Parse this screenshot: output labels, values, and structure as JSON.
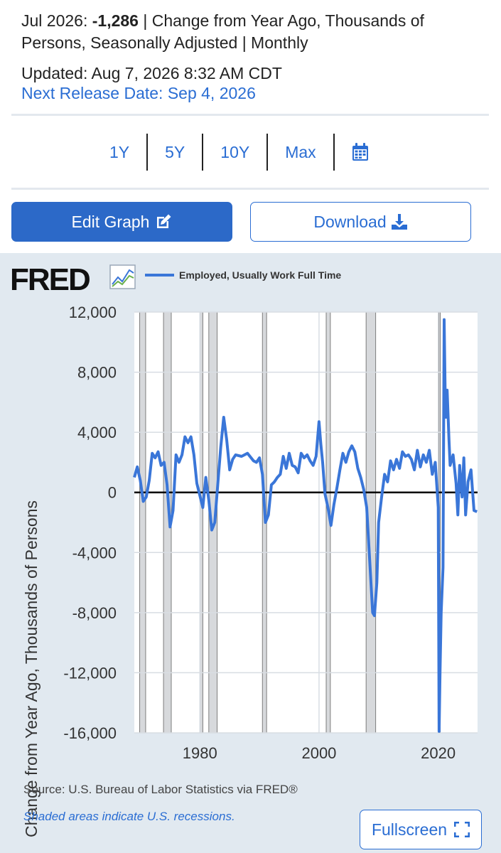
{
  "header": {
    "date": "Jul 2026:",
    "value": "-1,286",
    "units": "| Change from Year Ago, Thousands of Persons, Seasonally Adjusted | Monthly",
    "updated": "Updated: Aug 7, 2026 8:32 AM CDT",
    "next_release": "Next Release Date: Sep 4, 2026"
  },
  "range_buttons": [
    "1Y",
    "5Y",
    "10Y",
    "Max"
  ],
  "actions": {
    "edit": "Edit Graph",
    "download": "Download",
    "fullscreen": "Fullscreen"
  },
  "footer": {
    "source": "Source: U.S. Bureau of Labor Statistics via FRED®",
    "recession_note": "Shaded areas indicate U.S. recessions."
  },
  "brand": {
    "logo": "FRED",
    "accent": "#2a6dd3",
    "button_fill": "#2c69c8",
    "line_color": "#3a76d8"
  },
  "chart_data": {
    "type": "line",
    "title": "",
    "ylabel": "Change from Year Ago, Thousands of Persons",
    "xlabel": "",
    "legend": "Employed, Usually Work Full Time",
    "ylim": [
      -16000,
      12000
    ],
    "xlim": [
      1969,
      2026.6
    ],
    "yticks": [
      {
        "value": 12000,
        "label": "12,000"
      },
      {
        "value": 8000,
        "label": "8,000"
      },
      {
        "value": 4000,
        "label": "4,000"
      },
      {
        "value": 0,
        "label": "0"
      },
      {
        "value": -4000,
        "label": "-4,000"
      },
      {
        "value": -8000,
        "label": "-8,000"
      },
      {
        "value": -12000,
        "label": "-12,000"
      },
      {
        "value": -16000,
        "label": "-16,000"
      }
    ],
    "xticks": [
      {
        "value": 1980,
        "label": "1980"
      },
      {
        "value": 2000,
        "label": "2000"
      },
      {
        "value": 2020,
        "label": "2020"
      }
    ],
    "recessions": [
      [
        1969.9,
        1970.9
      ],
      [
        1973.9,
        1975.2
      ],
      [
        1980.0,
        1980.5
      ],
      [
        1981.5,
        1982.9
      ],
      [
        1990.5,
        1991.2
      ],
      [
        2001.2,
        2001.9
      ],
      [
        2007.9,
        2009.5
      ],
      [
        2020.1,
        2020.3
      ]
    ],
    "series": [
      {
        "name": "Employed, Usually Work Full Time",
        "x": [
          1969.0,
          1969.5,
          1970.0,
          1970.5,
          1971.0,
          1971.5,
          1972.0,
          1972.5,
          1973.0,
          1973.5,
          1974.0,
          1974.5,
          1975.0,
          1975.5,
          1976.0,
          1976.5,
          1977.0,
          1977.5,
          1978.0,
          1978.5,
          1979.0,
          1979.5,
          1980.0,
          1980.5,
          1981.0,
          1981.5,
          1982.0,
          1982.5,
          1983.0,
          1983.5,
          1984.0,
          1984.5,
          1985.0,
          1985.5,
          1986.0,
          1987.0,
          1988.0,
          1989.0,
          1989.5,
          1990.0,
          1990.5,
          1991.0,
          1991.5,
          1992.0,
          1992.5,
          1993.0,
          1993.5,
          1994.0,
          1994.5,
          1995.0,
          1995.5,
          1996.0,
          1996.5,
          1997.0,
          1997.5,
          1998.0,
          1998.5,
          1999.0,
          1999.5,
          2000.0,
          2000.3,
          2000.6,
          2001.0,
          2001.5,
          2002.0,
          2002.5,
          2003.0,
          2003.5,
          2004.0,
          2004.5,
          2005.0,
          2005.5,
          2006.0,
          2006.5,
          2007.0,
          2007.5,
          2008.0,
          2008.5,
          2009.0,
          2009.3,
          2009.7,
          2010.0,
          2010.5,
          2011.0,
          2011.5,
          2012.0,
          2012.5,
          2013.0,
          2013.5,
          2014.0,
          2014.5,
          2015.0,
          2015.5,
          2016.0,
          2016.5,
          2017.0,
          2017.5,
          2018.0,
          2018.5,
          2019.0,
          2019.5,
          2020.0,
          2020.15,
          2020.3,
          2020.5,
          2020.8,
          2021.0,
          2021.15,
          2021.3,
          2021.5,
          2021.8,
          2022.0,
          2022.5,
          2023.0,
          2023.3,
          2023.6,
          2024.0,
          2024.3,
          2024.6,
          2025.0,
          2025.5,
          2026.0,
          2026.5
        ],
        "values": [
          1000,
          1700,
          800,
          -600,
          -300,
          800,
          2600,
          2300,
          2700,
          1800,
          2000,
          500,
          -2300,
          -1200,
          2500,
          2000,
          2500,
          3700,
          3300,
          3700,
          2500,
          600,
          -200,
          -1000,
          1000,
          -500,
          -2500,
          -2000,
          500,
          3000,
          5000,
          3500,
          1500,
          2200,
          2500,
          2400,
          2600,
          2100,
          2000,
          2300,
          1200,
          -2000,
          -1500,
          500,
          700,
          1000,
          1200,
          2400,
          1600,
          2600,
          1800,
          1700,
          1300,
          2600,
          2300,
          2500,
          2100,
          1800,
          2400,
          4700,
          3200,
          2000,
          -100,
          -1000,
          -2200,
          -800,
          300,
          1500,
          2600,
          2000,
          2700,
          3100,
          2700,
          1600,
          1000,
          200,
          -1000,
          -4500,
          -8000,
          -8200,
          -6000,
          -2000,
          -300,
          1200,
          700,
          2100,
          1500,
          2200,
          1600,
          2700,
          2400,
          2500,
          2200,
          1500,
          2800,
          1700,
          2500,
          2000,
          2800,
          1200,
          2000,
          -1000,
          -15900,
          -12000,
          -8000,
          -5000,
          11500,
          7000,
          5000,
          6800,
          3500,
          1800,
          2500,
          600,
          -1500,
          1800,
          -300,
          2300,
          -1500,
          700,
          1500,
          -1200,
          -1286
        ]
      }
    ]
  }
}
